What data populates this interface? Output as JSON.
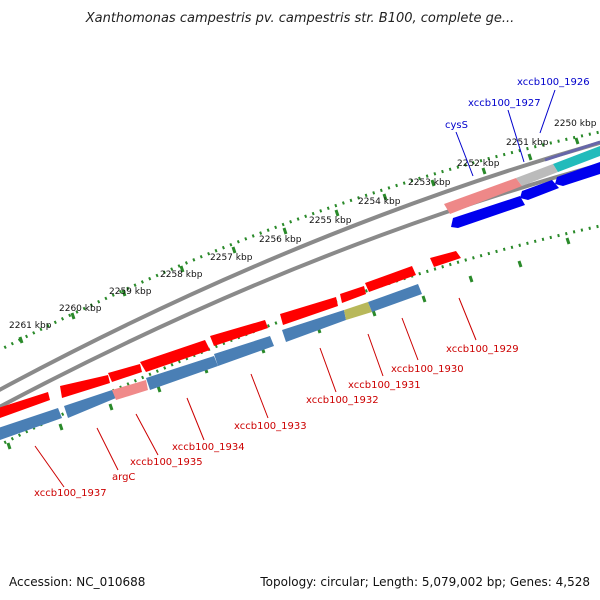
{
  "title": "Xanthomonas campestris pv. campestris str. B100, complete ge...",
  "footer": {
    "accession": "Accession: NC_010688",
    "topology": "Topology: circular; Length: 5,079,002 bp; Genes: 4,528"
  },
  "ticks": [
    "2250 kbp",
    "2251 kbp",
    "2252 kbp",
    "2253 kbp",
    "2254 kbp",
    "2255 kbp",
    "2256 kbp",
    "2257 kbp",
    "2258 kbp",
    "2259 kbp",
    "2260 kbp",
    "2261 kbp"
  ],
  "top_labels": [
    "xccb100_1926",
    "xccb100_1927",
    "cysS"
  ],
  "bottom_labels": [
    "xccb100_1929",
    "xccb100_1930",
    "xccb100_1931",
    "xccb100_1932",
    "xccb100_1933",
    "xccb100_1934",
    "xccb100_1935",
    "argC",
    "xccb100_1937"
  ],
  "colors": {
    "forward_gene": "#ff0000",
    "forward_gene_pale": "#f08a8a",
    "forward_gene_top": "#ee8888",
    "reverse_gene": "#0000ee",
    "bottom_blue": "#4a7fb5",
    "highlight_olive": "#b8b85a",
    "gray_block": "#bbbbbb",
    "teal_block": "#22bbbb",
    "backbone": "#888888",
    "tick_dots": "#2a8a2a",
    "top_label": "#0000cc",
    "bottom_label": "#cc0000"
  }
}
